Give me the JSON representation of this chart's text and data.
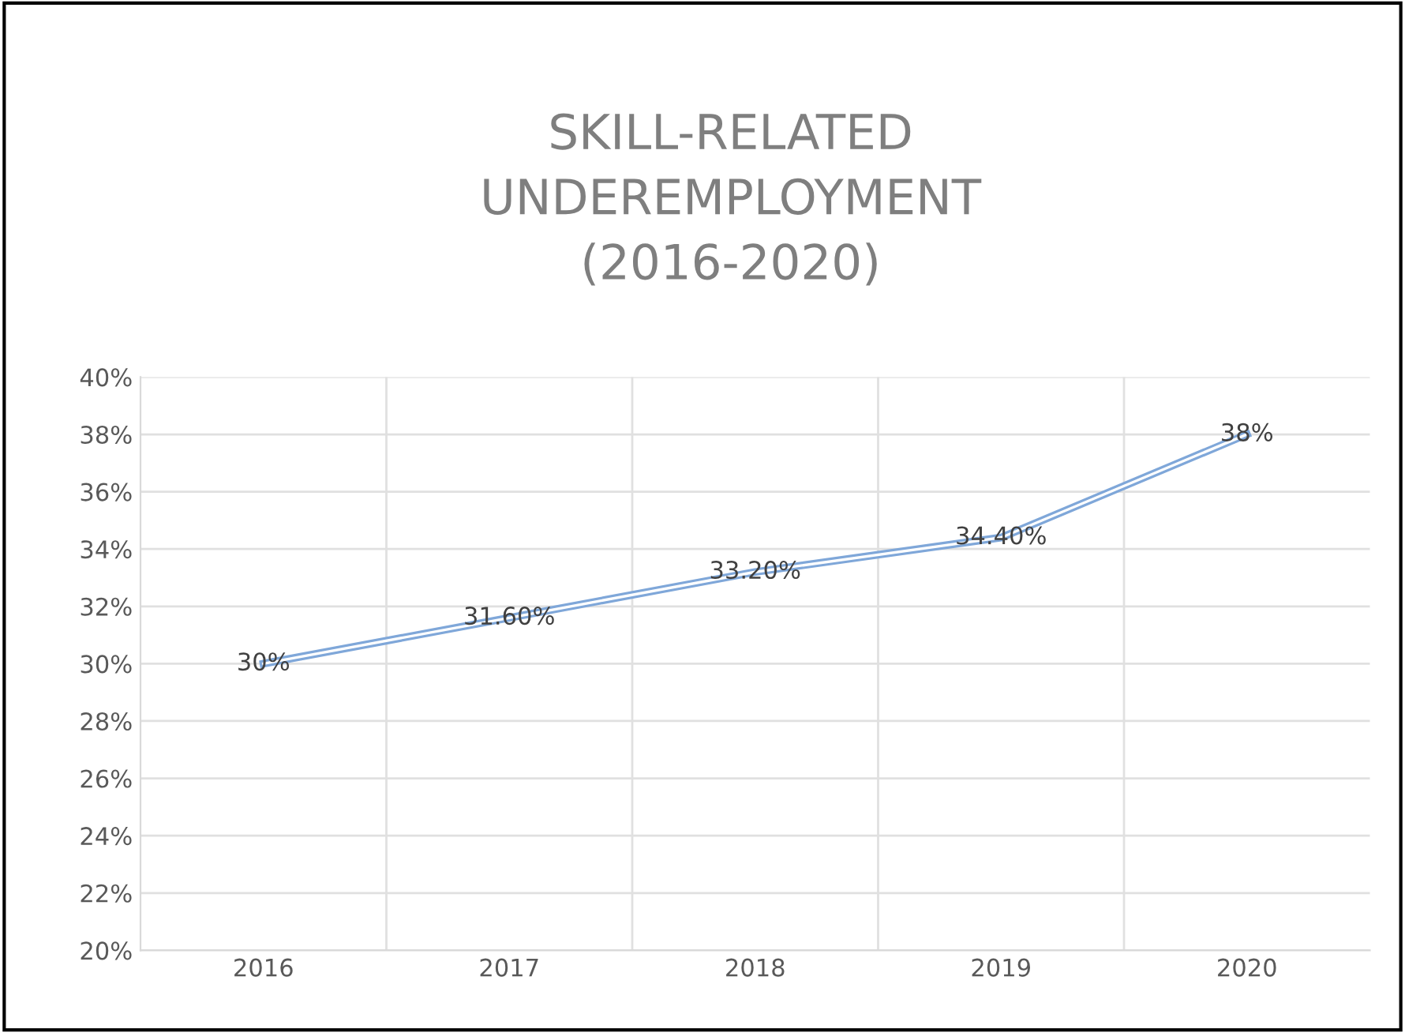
{
  "chart_data": {
    "type": "line",
    "title": "SKILL-RELATED\nUNDEREMPLOYMENT\n(2016-2020)",
    "categories": [
      "2016",
      "2017",
      "2018",
      "2019",
      "2020"
    ],
    "series": [
      {
        "color": "#7fa7d9",
        "values": [
          30,
          31.6,
          33.2,
          34.4,
          38
        ],
        "value_labels": [
          "30%",
          "31.60%",
          "33.20%",
          "34.40%",
          "38%"
        ]
      }
    ],
    "ylim": [
      20,
      40
    ],
    "yticks": [
      {
        "value": 20,
        "label": "20%"
      },
      {
        "value": 22,
        "label": "22%"
      },
      {
        "value": 24,
        "label": "24%"
      },
      {
        "value": 26,
        "label": "26%"
      },
      {
        "value": 28,
        "label": "28%"
      },
      {
        "value": 30,
        "label": "30%"
      },
      {
        "value": 32,
        "label": "32%"
      },
      {
        "value": 34,
        "label": "34%"
      },
      {
        "value": 36,
        "label": "36%"
      },
      {
        "value": 38,
        "label": "38%"
      },
      {
        "value": 40,
        "label": "40%"
      }
    ],
    "grid": true,
    "marker": "none",
    "line_style": "solid"
  }
}
